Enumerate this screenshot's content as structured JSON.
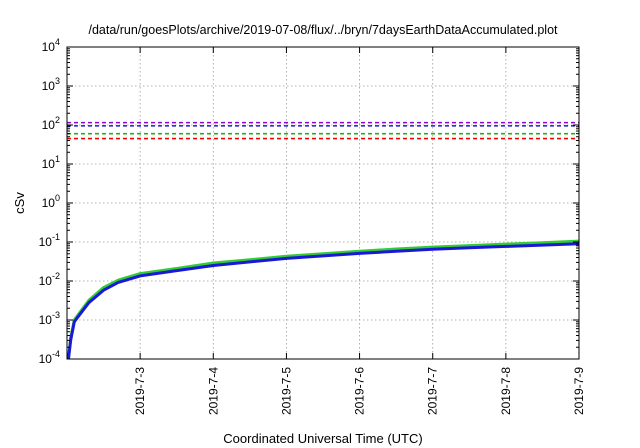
{
  "chart_data": {
    "type": "line",
    "title": "/data/run/goesPlots/archive/2019-07-08/flux/../bryn/7daysEarthDataAccumulated.plot",
    "xlabel": "Coordinated Universal Time (UTC)",
    "ylabel": "cSv",
    "yscale": "log",
    "ylim": [
      0.0001,
      10000
    ],
    "xlim": [
      0,
      7
    ],
    "x_unit": "days since 2019-07-02",
    "xticks": [
      {
        "value": 1,
        "label": "2019-7-3"
      },
      {
        "value": 2,
        "label": "2019-7-4"
      },
      {
        "value": 3,
        "label": "2019-7-5"
      },
      {
        "value": 4,
        "label": "2019-7-6"
      },
      {
        "value": 5,
        "label": "2019-7-7"
      },
      {
        "value": 6,
        "label": "2019-7-8"
      },
      {
        "value": 7,
        "label": "2019-7-9"
      }
    ],
    "yticks": [
      {
        "value": 0.0001,
        "base": "10",
        "exp": "-4"
      },
      {
        "value": 0.001,
        "base": "10",
        "exp": "-3"
      },
      {
        "value": 0.01,
        "base": "10",
        "exp": "-2"
      },
      {
        "value": 0.1,
        "base": "10",
        "exp": "-1"
      },
      {
        "value": 1,
        "base": "10",
        "exp": "0"
      },
      {
        "value": 10,
        "base": "10",
        "exp": "1"
      },
      {
        "value": 100,
        "base": "10",
        "exp": "2"
      },
      {
        "value": 1000,
        "base": "10",
        "exp": "3"
      },
      {
        "value": 10000,
        "base": "10",
        "exp": "4"
      }
    ],
    "grid": true,
    "thresholds": [
      {
        "value": 115,
        "color": "#9400d3",
        "style": "dashed"
      },
      {
        "value": 95,
        "color": "#1e1ec8",
        "style": "dashed"
      },
      {
        "value": 60,
        "color": "#22b022",
        "style": "dashed"
      },
      {
        "value": 45,
        "color": "#ff0000",
        "style": "dashed"
      }
    ],
    "series": [
      {
        "color": "#33cc33",
        "x": [
          0.02,
          0.05,
          0.1,
          0.2,
          0.3,
          0.5,
          0.7,
          1.0,
          1.5,
          2.0,
          2.5,
          3.0,
          3.5,
          4.0,
          4.5,
          5.0,
          5.5,
          6.0,
          6.5,
          7.0
        ],
        "y": [
          0.0001,
          0.00035,
          0.001,
          0.0018,
          0.0032,
          0.0068,
          0.0105,
          0.0155,
          0.021,
          0.029,
          0.035,
          0.043,
          0.05,
          0.058,
          0.066,
          0.074,
          0.081,
          0.088,
          0.096,
          0.105
        ]
      },
      {
        "color": "#1a1ad6",
        "x": [
          0.02,
          0.05,
          0.1,
          0.2,
          0.3,
          0.5,
          0.7,
          1.0,
          1.5,
          2.0,
          2.5,
          3.0,
          3.5,
          4.0,
          4.5,
          5.0,
          5.5,
          6.0,
          6.5,
          7.0
        ],
        "y": [
          0.0001,
          0.0003,
          0.0009,
          0.0016,
          0.0028,
          0.0058,
          0.0092,
          0.0135,
          0.0185,
          0.025,
          0.031,
          0.038,
          0.044,
          0.051,
          0.058,
          0.065,
          0.071,
          0.077,
          0.083,
          0.09
        ]
      }
    ]
  }
}
